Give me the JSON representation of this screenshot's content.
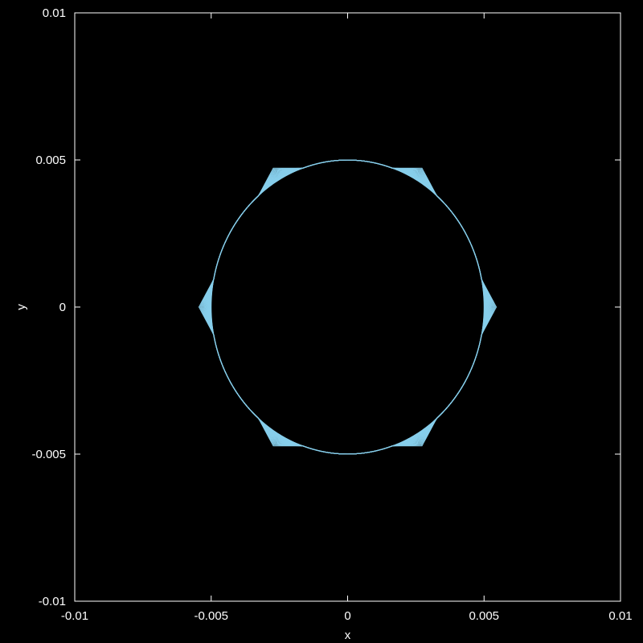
{
  "chart_data": {
    "type": "line",
    "title": "",
    "xlabel": "x",
    "ylabel": "y",
    "xlim": [
      -0.01,
      0.01
    ],
    "ylim": [
      -0.01,
      0.01
    ],
    "xticks": [
      -0.01,
      -0.005,
      0,
      0.005,
      0.01
    ],
    "yticks": [
      -0.01,
      -0.005,
      0,
      0.005,
      0.01
    ],
    "xtick_labels": [
      "-0.01",
      "-0.005",
      "0",
      "0.005",
      "0.01"
    ],
    "ytick_labels": [
      "-0.01",
      "-0.005",
      "0",
      "0.005",
      "0.01"
    ],
    "grid": false,
    "legend": "none",
    "background_color": "#000000",
    "axis_color": "#ffffff",
    "series_color": "#87ceeb",
    "curve_family": {
      "description_of_shape": "family of closed curves morphing from a circle toward a rounded hexagon",
      "base_radius": 0.005,
      "hexagon_circumradius": 0.00545,
      "num_curves": 20
    }
  }
}
